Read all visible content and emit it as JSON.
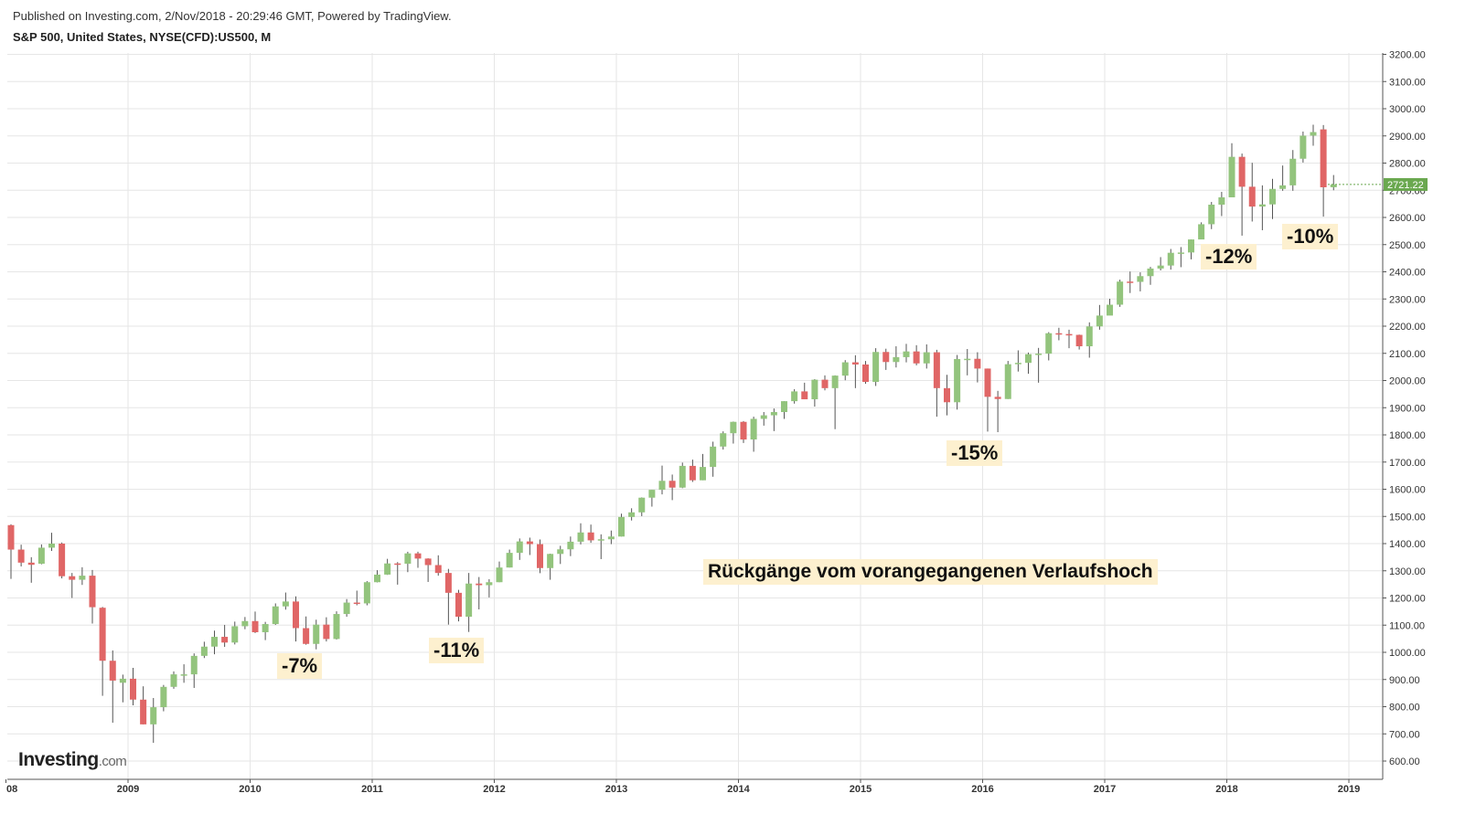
{
  "header": {
    "published": "Published on Investing.com, 2/Nov/2018 - 20:29:46 GMT, Powered by TradingView.",
    "symbol": "S&P 500, United States, NYSE(CFD):US500, M"
  },
  "logo": {
    "brand": "Investing",
    "suffix": ".com"
  },
  "annotations": {
    "a7": "-7%",
    "a11": "-11%",
    "a15": "-15%",
    "a12": "-12%",
    "a10": "-10%",
    "title": "Rückgänge vom vorangegangenen Verlaufshoch"
  },
  "colors": {
    "up": "#93c47d",
    "down": "#e06666",
    "wick": "#555555",
    "grid": "#e6e6e6",
    "last_price": "#6aa84f",
    "annotation_bg": "#fdf0cf"
  },
  "chart_data": {
    "type": "candlestick",
    "title": "S&P 500, United States, NYSE(CFD):US500, M",
    "ylim": [
      550,
      3200
    ],
    "y_ticks": [
      "600.00",
      "700.00",
      "800.00",
      "900.00",
      "1000.00",
      "1100.00",
      "1200.00",
      "1300.00",
      "1400.00",
      "1500.00",
      "1600.00",
      "1700.00",
      "1800.00",
      "1900.00",
      "2000.00",
      "2100.00",
      "2200.00",
      "2300.00",
      "2400.00",
      "2500.00",
      "2600.00",
      "2700.00",
      "2800.00",
      "2900.00",
      "3000.00",
      "3100.00",
      "3200.00"
    ],
    "x_ticks": [
      "08",
      "2009",
      "2010",
      "2011",
      "2012",
      "2013",
      "2014",
      "2015",
      "2016",
      "2017",
      "2018",
      "2019"
    ],
    "last_price": "2721.22",
    "grid": true,
    "series": [
      {
        "d": "2008-01",
        "o": 1468,
        "h": 1471,
        "l": 1270,
        "c": 1378
      },
      {
        "d": "2008-02",
        "o": 1378,
        "h": 1396,
        "l": 1316,
        "c": 1330
      },
      {
        "d": "2008-03",
        "o": 1330,
        "h": 1350,
        "l": 1256,
        "c": 1322
      },
      {
        "d": "2008-04",
        "o": 1326,
        "h": 1397,
        "l": 1324,
        "c": 1385
      },
      {
        "d": "2008-05",
        "o": 1385,
        "h": 1440,
        "l": 1373,
        "c": 1400
      },
      {
        "d": "2008-06",
        "o": 1400,
        "h": 1404,
        "l": 1272,
        "c": 1280
      },
      {
        "d": "2008-07",
        "o": 1280,
        "h": 1292,
        "l": 1200,
        "c": 1267
      },
      {
        "d": "2008-08",
        "o": 1267,
        "h": 1313,
        "l": 1248,
        "c": 1282
      },
      {
        "d": "2008-09",
        "o": 1282,
        "h": 1303,
        "l": 1106,
        "c": 1166
      },
      {
        "d": "2008-10",
        "o": 1164,
        "h": 1167,
        "l": 840,
        "c": 969
      },
      {
        "d": "2008-11",
        "o": 969,
        "h": 1007,
        "l": 741,
        "c": 896
      },
      {
        "d": "2008-12",
        "o": 888,
        "h": 918,
        "l": 816,
        "c": 903
      },
      {
        "d": "2009-01",
        "o": 903,
        "h": 943,
        "l": 805,
        "c": 826
      },
      {
        "d": "2009-02",
        "o": 826,
        "h": 875,
        "l": 735,
        "c": 735
      },
      {
        "d": "2009-03",
        "o": 735,
        "h": 832,
        "l": 667,
        "c": 798
      },
      {
        "d": "2009-04",
        "o": 798,
        "h": 880,
        "l": 783,
        "c": 873
      },
      {
        "d": "2009-05",
        "o": 873,
        "h": 930,
        "l": 866,
        "c": 919
      },
      {
        "d": "2009-06",
        "o": 919,
        "h": 956,
        "l": 888,
        "c": 919
      },
      {
        "d": "2009-07",
        "o": 919,
        "h": 996,
        "l": 869,
        "c": 987
      },
      {
        "d": "2009-08",
        "o": 987,
        "h": 1039,
        "l": 979,
        "c": 1021
      },
      {
        "d": "2009-09",
        "o": 1021,
        "h": 1080,
        "l": 993,
        "c": 1057
      },
      {
        "d": "2009-10",
        "o": 1057,
        "h": 1101,
        "l": 1020,
        "c": 1036
      },
      {
        "d": "2009-11",
        "o": 1036,
        "h": 1113,
        "l": 1029,
        "c": 1096
      },
      {
        "d": "2009-12",
        "o": 1096,
        "h": 1130,
        "l": 1085,
        "c": 1115
      },
      {
        "d": "2010-01",
        "o": 1115,
        "h": 1150,
        "l": 1071,
        "c": 1074
      },
      {
        "d": "2010-02",
        "o": 1074,
        "h": 1112,
        "l": 1045,
        "c": 1104
      },
      {
        "d": "2010-03",
        "o": 1104,
        "h": 1180,
        "l": 1101,
        "c": 1169
      },
      {
        "d": "2010-04",
        "o": 1169,
        "h": 1220,
        "l": 1157,
        "c": 1187
      },
      {
        "d": "2010-05",
        "o": 1187,
        "h": 1206,
        "l": 1040,
        "c": 1089
      },
      {
        "d": "2010-06",
        "o": 1089,
        "h": 1132,
        "l": 1028,
        "c": 1031
      },
      {
        "d": "2010-07",
        "o": 1031,
        "h": 1120,
        "l": 1011,
        "c": 1102
      },
      {
        "d": "2010-08",
        "o": 1102,
        "h": 1129,
        "l": 1040,
        "c": 1049
      },
      {
        "d": "2010-09",
        "o": 1049,
        "h": 1151,
        "l": 1047,
        "c": 1141
      },
      {
        "d": "2010-10",
        "o": 1141,
        "h": 1196,
        "l": 1131,
        "c": 1183
      },
      {
        "d": "2010-11",
        "o": 1183,
        "h": 1227,
        "l": 1173,
        "c": 1180
      },
      {
        "d": "2010-12",
        "o": 1180,
        "h": 1262,
        "l": 1173,
        "c": 1258
      },
      {
        "d": "2011-01",
        "o": 1258,
        "h": 1302,
        "l": 1257,
        "c": 1286
      },
      {
        "d": "2011-02",
        "o": 1286,
        "h": 1344,
        "l": 1285,
        "c": 1327
      },
      {
        "d": "2011-03",
        "o": 1327,
        "h": 1332,
        "l": 1249,
        "c": 1326
      },
      {
        "d": "2011-04",
        "o": 1326,
        "h": 1370,
        "l": 1295,
        "c": 1364
      },
      {
        "d": "2011-05",
        "o": 1364,
        "h": 1370,
        "l": 1311,
        "c": 1345
      },
      {
        "d": "2011-06",
        "o": 1345,
        "h": 1346,
        "l": 1259,
        "c": 1321
      },
      {
        "d": "2011-07",
        "o": 1321,
        "h": 1357,
        "l": 1282,
        "c": 1292
      },
      {
        "d": "2011-08",
        "o": 1292,
        "h": 1307,
        "l": 1102,
        "c": 1219
      },
      {
        "d": "2011-09",
        "o": 1219,
        "h": 1230,
        "l": 1114,
        "c": 1131
      },
      {
        "d": "2011-10",
        "o": 1131,
        "h": 1292,
        "l": 1075,
        "c": 1253
      },
      {
        "d": "2011-11",
        "o": 1253,
        "h": 1277,
        "l": 1158,
        "c": 1247
      },
      {
        "d": "2011-12",
        "o": 1247,
        "h": 1269,
        "l": 1202,
        "c": 1258
      },
      {
        "d": "2012-01",
        "o": 1258,
        "h": 1334,
        "l": 1258,
        "c": 1312
      },
      {
        "d": "2012-02",
        "o": 1312,
        "h": 1378,
        "l": 1312,
        "c": 1366
      },
      {
        "d": "2012-03",
        "o": 1366,
        "h": 1419,
        "l": 1340,
        "c": 1408
      },
      {
        "d": "2012-04",
        "o": 1408,
        "h": 1422,
        "l": 1358,
        "c": 1398
      },
      {
        "d": "2012-05",
        "o": 1398,
        "h": 1415,
        "l": 1291,
        "c": 1310
      },
      {
        "d": "2012-06",
        "o": 1310,
        "h": 1363,
        "l": 1267,
        "c": 1362
      },
      {
        "d": "2012-07",
        "o": 1362,
        "h": 1392,
        "l": 1325,
        "c": 1379
      },
      {
        "d": "2012-08",
        "o": 1379,
        "h": 1426,
        "l": 1354,
        "c": 1407
      },
      {
        "d": "2012-09",
        "o": 1407,
        "h": 1475,
        "l": 1397,
        "c": 1441
      },
      {
        "d": "2012-10",
        "o": 1441,
        "h": 1470,
        "l": 1403,
        "c": 1412
      },
      {
        "d": "2012-11",
        "o": 1412,
        "h": 1434,
        "l": 1343,
        "c": 1416
      },
      {
        "d": "2012-12",
        "o": 1416,
        "h": 1448,
        "l": 1398,
        "c": 1426
      },
      {
        "d": "2013-01",
        "o": 1426,
        "h": 1510,
        "l": 1426,
        "c": 1498
      },
      {
        "d": "2013-02",
        "o": 1498,
        "h": 1530,
        "l": 1485,
        "c": 1515
      },
      {
        "d": "2013-03",
        "o": 1515,
        "h": 1570,
        "l": 1501,
        "c": 1569
      },
      {
        "d": "2013-04",
        "o": 1569,
        "h": 1598,
        "l": 1536,
        "c": 1598
      },
      {
        "d": "2013-05",
        "o": 1598,
        "h": 1687,
        "l": 1581,
        "c": 1631
      },
      {
        "d": "2013-06",
        "o": 1631,
        "h": 1654,
        "l": 1560,
        "c": 1606
      },
      {
        "d": "2013-07",
        "o": 1606,
        "h": 1698,
        "l": 1604,
        "c": 1686
      },
      {
        "d": "2013-08",
        "o": 1686,
        "h": 1709,
        "l": 1627,
        "c": 1633
      },
      {
        "d": "2013-09",
        "o": 1633,
        "h": 1730,
        "l": 1633,
        "c": 1682
      },
      {
        "d": "2013-10",
        "o": 1682,
        "h": 1775,
        "l": 1646,
        "c": 1757
      },
      {
        "d": "2013-11",
        "o": 1757,
        "h": 1813,
        "l": 1746,
        "c": 1806
      },
      {
        "d": "2013-12",
        "o": 1806,
        "h": 1849,
        "l": 1768,
        "c": 1848
      },
      {
        "d": "2014-01",
        "o": 1848,
        "h": 1851,
        "l": 1770,
        "c": 1783
      },
      {
        "d": "2014-02",
        "o": 1783,
        "h": 1867,
        "l": 1738,
        "c": 1859
      },
      {
        "d": "2014-03",
        "o": 1859,
        "h": 1884,
        "l": 1834,
        "c": 1872
      },
      {
        "d": "2014-04",
        "o": 1872,
        "h": 1897,
        "l": 1814,
        "c": 1884
      },
      {
        "d": "2014-05",
        "o": 1884,
        "h": 1924,
        "l": 1859,
        "c": 1924
      },
      {
        "d": "2014-06",
        "o": 1924,
        "h": 1968,
        "l": 1915,
        "c": 1960
      },
      {
        "d": "2014-07",
        "o": 1960,
        "h": 1992,
        "l": 1931,
        "c": 1931
      },
      {
        "d": "2014-08",
        "o": 1931,
        "h": 2005,
        "l": 1904,
        "c": 2003
      },
      {
        "d": "2014-09",
        "o": 2003,
        "h": 2019,
        "l": 1964,
        "c": 1972
      },
      {
        "d": "2014-10",
        "o": 1972,
        "h": 2019,
        "l": 1821,
        "c": 2018
      },
      {
        "d": "2014-11",
        "o": 2018,
        "h": 2075,
        "l": 2001,
        "c": 2067
      },
      {
        "d": "2014-12",
        "o": 2067,
        "h": 2093,
        "l": 1972,
        "c": 2059
      },
      {
        "d": "2015-01",
        "o": 2059,
        "h": 2072,
        "l": 1988,
        "c": 1995
      },
      {
        "d": "2015-02",
        "o": 1995,
        "h": 2119,
        "l": 1980,
        "c": 2105
      },
      {
        "d": "2015-03",
        "o": 2105,
        "h": 2117,
        "l": 2039,
        "c": 2068
      },
      {
        "d": "2015-04",
        "o": 2068,
        "h": 2126,
        "l": 2048,
        "c": 2086
      },
      {
        "d": "2015-05",
        "o": 2086,
        "h": 2135,
        "l": 2067,
        "c": 2107
      },
      {
        "d": "2015-06",
        "o": 2107,
        "h": 2130,
        "l": 2056,
        "c": 2063
      },
      {
        "d": "2015-07",
        "o": 2063,
        "h": 2133,
        "l": 2044,
        "c": 2104
      },
      {
        "d": "2015-08",
        "o": 2104,
        "h": 2113,
        "l": 1867,
        "c": 1972
      },
      {
        "d": "2015-09",
        "o": 1972,
        "h": 2021,
        "l": 1872,
        "c": 1920
      },
      {
        "d": "2015-10",
        "o": 1920,
        "h": 2094,
        "l": 1893,
        "c": 2079
      },
      {
        "d": "2015-11",
        "o": 2079,
        "h": 2116,
        "l": 2019,
        "c": 2080
      },
      {
        "d": "2015-12",
        "o": 2080,
        "h": 2104,
        "l": 1993,
        "c": 2044
      },
      {
        "d": "2016-01",
        "o": 2044,
        "h": 2044,
        "l": 1812,
        "c": 1940
      },
      {
        "d": "2016-02",
        "o": 1940,
        "h": 1962,
        "l": 1810,
        "c": 1932
      },
      {
        "d": "2016-03",
        "o": 1932,
        "h": 2072,
        "l": 1932,
        "c": 2060
      },
      {
        "d": "2016-04",
        "o": 2060,
        "h": 2111,
        "l": 2033,
        "c": 2065
      },
      {
        "d": "2016-05",
        "o": 2065,
        "h": 2103,
        "l": 2025,
        "c": 2097
      },
      {
        "d": "2016-06",
        "o": 2097,
        "h": 2120,
        "l": 1992,
        "c": 2099
      },
      {
        "d": "2016-07",
        "o": 2099,
        "h": 2178,
        "l": 2074,
        "c": 2174
      },
      {
        "d": "2016-08",
        "o": 2174,
        "h": 2194,
        "l": 2148,
        "c": 2171
      },
      {
        "d": "2016-09",
        "o": 2171,
        "h": 2187,
        "l": 2119,
        "c": 2168
      },
      {
        "d": "2016-10",
        "o": 2168,
        "h": 2169,
        "l": 2114,
        "c": 2126
      },
      {
        "d": "2016-11",
        "o": 2126,
        "h": 2214,
        "l": 2084,
        "c": 2199
      },
      {
        "d": "2016-12",
        "o": 2199,
        "h": 2278,
        "l": 2187,
        "c": 2239
      },
      {
        "d": "2017-01",
        "o": 2239,
        "h": 2301,
        "l": 2245,
        "c": 2279
      },
      {
        "d": "2017-02",
        "o": 2279,
        "h": 2371,
        "l": 2271,
        "c": 2364
      },
      {
        "d": "2017-03",
        "o": 2364,
        "h": 2401,
        "l": 2322,
        "c": 2363
      },
      {
        "d": "2017-04",
        "o": 2363,
        "h": 2398,
        "l": 2328,
        "c": 2384
      },
      {
        "d": "2017-05",
        "o": 2384,
        "h": 2418,
        "l": 2352,
        "c": 2412
      },
      {
        "d": "2017-06",
        "o": 2412,
        "h": 2454,
        "l": 2405,
        "c": 2423
      },
      {
        "d": "2017-07",
        "o": 2423,
        "h": 2484,
        "l": 2408,
        "c": 2470
      },
      {
        "d": "2017-08",
        "o": 2470,
        "h": 2491,
        "l": 2417,
        "c": 2471
      },
      {
        "d": "2017-09",
        "o": 2471,
        "h": 2519,
        "l": 2446,
        "c": 2519
      },
      {
        "d": "2017-10",
        "o": 2519,
        "h": 2582,
        "l": 2521,
        "c": 2575
      },
      {
        "d": "2017-11",
        "o": 2575,
        "h": 2657,
        "l": 2557,
        "c": 2647
      },
      {
        "d": "2017-12",
        "o": 2647,
        "h": 2694,
        "l": 2605,
        "c": 2674
      },
      {
        "d": "2018-01",
        "o": 2674,
        "h": 2873,
        "l": 2682,
        "c": 2823
      },
      {
        "d": "2018-02",
        "o": 2823,
        "h": 2835,
        "l": 2533,
        "c": 2713
      },
      {
        "d": "2018-03",
        "o": 2713,
        "h": 2801,
        "l": 2585,
        "c": 2640
      },
      {
        "d": "2018-04",
        "o": 2640,
        "h": 2718,
        "l": 2553,
        "c": 2648
      },
      {
        "d": "2018-05",
        "o": 2648,
        "h": 2742,
        "l": 2594,
        "c": 2705
      },
      {
        "d": "2018-06",
        "o": 2705,
        "h": 2791,
        "l": 2698,
        "c": 2718
      },
      {
        "d": "2018-07",
        "o": 2718,
        "h": 2848,
        "l": 2698,
        "c": 2816
      },
      {
        "d": "2018-08",
        "o": 2816,
        "h": 2916,
        "l": 2802,
        "c": 2901
      },
      {
        "d": "2018-09",
        "o": 2901,
        "h": 2941,
        "l": 2864,
        "c": 2914
      },
      {
        "d": "2018-10",
        "o": 2924,
        "h": 2940,
        "l": 2603,
        "c": 2711
      },
      {
        "d": "2018-11",
        "o": 2711,
        "h": 2756,
        "l": 2700,
        "c": 2721
      }
    ]
  }
}
